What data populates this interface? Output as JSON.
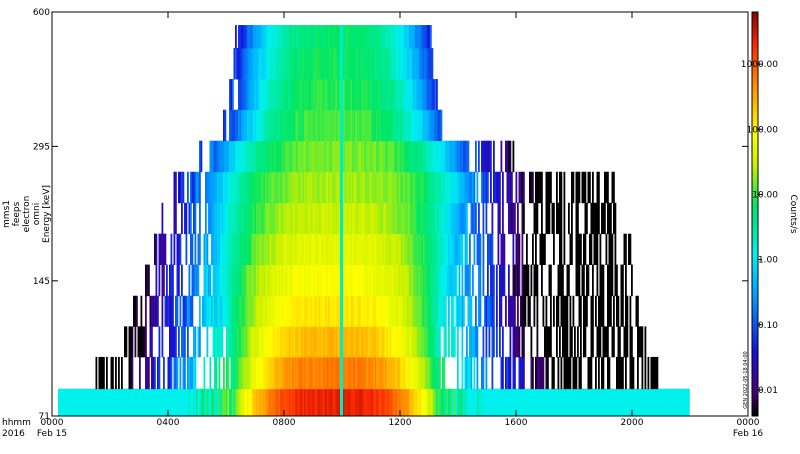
{
  "chart_data": {
    "type": "heatmap",
    "title": "",
    "ylabel_lines": [
      "mms1",
      "feeps",
      "electron",
      "omni",
      "Energy [keV]"
    ],
    "x_ticks": [
      {
        "hour": 0,
        "label": "0000"
      },
      {
        "hour": 4,
        "label": "0400"
      },
      {
        "hour": 8,
        "label": "0800"
      },
      {
        "hour": 12,
        "label": "1200"
      },
      {
        "hour": 16,
        "label": "1600"
      },
      {
        "hour": 20,
        "label": "2000"
      },
      {
        "hour": 24,
        "label": "0000"
      }
    ],
    "x_date_labels": [
      {
        "hour": 0,
        "label": "Feb 15"
      },
      {
        "hour": 24,
        "label": "Feb 16"
      }
    ],
    "x_corner_labels": [
      "hhmm",
      "2016"
    ],
    "xlim": [
      0,
      24
    ],
    "y_scale": "log",
    "ylim": [
      71,
      600
    ],
    "y_ticks": [
      71,
      145,
      295,
      600
    ],
    "energy_bins": [
      {
        "low": 71,
        "high": 82,
        "reach_left": 0.2,
        "reach_right": 22.0,
        "core_left": 6.3,
        "core_right": 13.2,
        "peak": 3.4
      },
      {
        "low": 82,
        "high": 97,
        "reach_left": 1.5,
        "reach_right": 20.9,
        "core_left": 6.2,
        "core_right": 13.3,
        "peak": 2.8
      },
      {
        "low": 97,
        "high": 114,
        "reach_left": 2.4,
        "reach_right": 20.5,
        "core_left": 6.0,
        "core_right": 13.4,
        "peak": 2.4
      },
      {
        "low": 114,
        "high": 134,
        "reach_left": 2.8,
        "reach_right": 20.3,
        "core_left": 5.8,
        "core_right": 13.6,
        "peak": 2.1
      },
      {
        "low": 134,
        "high": 158,
        "reach_left": 3.2,
        "reach_right": 20.2,
        "core_left": 5.6,
        "core_right": 13.8,
        "peak": 1.9
      },
      {
        "low": 158,
        "high": 186,
        "reach_left": 3.5,
        "reach_right": 20.0,
        "core_left": 5.5,
        "core_right": 14.0,
        "peak": 1.7
      },
      {
        "low": 186,
        "high": 219,
        "reach_left": 3.8,
        "reach_right": 19.6,
        "core_left": 5.4,
        "core_right": 14.2,
        "peak": 1.5
      },
      {
        "low": 219,
        "high": 258,
        "reach_left": 4.2,
        "reach_right": 19.4,
        "core_left": 5.3,
        "core_right": 14.5,
        "peak": 1.35
      },
      {
        "low": 258,
        "high": 304,
        "reach_left": 5.0,
        "reach_right": 16.0,
        "core_left": 5.6,
        "core_right": 14.2,
        "peak": 1.2
      },
      {
        "low": 304,
        "high": 358,
        "reach_left": 5.9,
        "reach_right": 13.6,
        "core_left": 6.2,
        "core_right": 13.4,
        "peak": 1.05
      },
      {
        "low": 358,
        "high": 421,
        "reach_left": 6.1,
        "reach_right": 13.3,
        "core_left": 6.4,
        "core_right": 13.2,
        "peak": 0.95
      },
      {
        "low": 421,
        "high": 496,
        "reach_left": 6.2,
        "reach_right": 13.2,
        "core_left": 6.4,
        "core_right": 13.1,
        "peak": 0.85
      },
      {
        "low": 496,
        "high": 560,
        "reach_left": 6.3,
        "reach_right": 13.1,
        "core_left": 6.5,
        "core_right": 13.0,
        "peak": 0.8
      }
    ],
    "gap_hour": 10.0,
    "colorbar": {
      "label": "Counts/s",
      "scale": "log",
      "range_log10": [
        -2.4,
        3.8
      ],
      "ticks": [
        {
          "value": 1000.0,
          "label": "1000.00"
        },
        {
          "value": 100.0,
          "label": "100.00"
        },
        {
          "value": 10.0,
          "label": "10.00"
        },
        {
          "value": 1.0,
          "label": "1.00"
        },
        {
          "value": 0.1,
          "label": "0.10"
        },
        {
          "value": 0.01,
          "label": "0.01"
        }
      ]
    },
    "side_stamp": "GEN 2022-05-18 04:00"
  }
}
